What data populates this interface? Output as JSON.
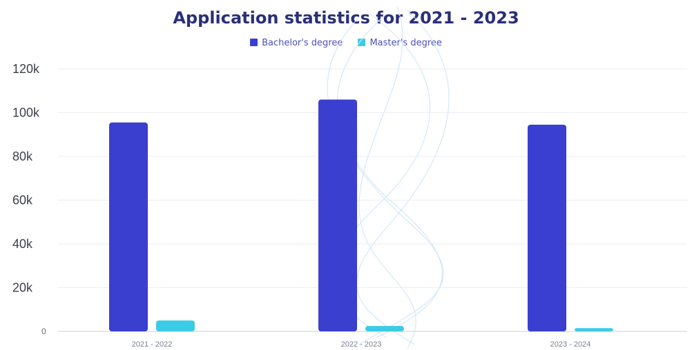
{
  "chart_data": {
    "type": "bar",
    "title": "Application statistics for 2021 - 2023",
    "categories": [
      "2021 - 2022",
      "2022 - 2023",
      "2023 - 2024"
    ],
    "series": [
      {
        "name": "Bachelor's degree",
        "values": [
          95500,
          106000,
          94500
        ],
        "color": "#3a3fcf"
      },
      {
        "name": "Master's degree",
        "values": [
          5000,
          2500,
          1500
        ],
        "color": "#3ccbe6"
      }
    ],
    "yticks": [
      0,
      20000,
      40000,
      60000,
      80000,
      100000,
      120000
    ],
    "ytick_labels": [
      "0",
      "20k",
      "40k",
      "60k",
      "80k",
      "100k",
      "120k"
    ],
    "ylim": [
      0,
      120000
    ],
    "grid": true,
    "legend_position": "top-center",
    "xlabel": "",
    "ylabel": ""
  }
}
